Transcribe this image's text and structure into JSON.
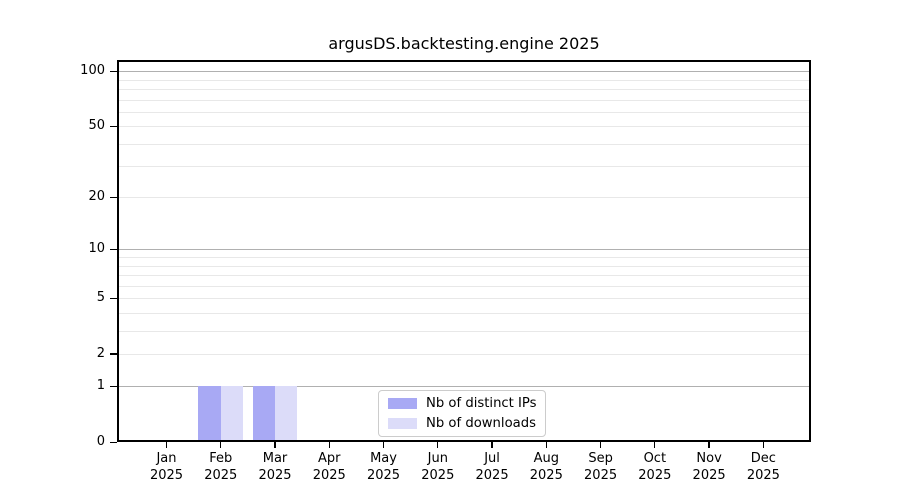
{
  "title": "argusDS.backtesting.engine 2025",
  "chart_data": {
    "type": "bar",
    "title": "argusDS.backtesting.engine 2025",
    "x_months": [
      "Jan",
      "Feb",
      "Mar",
      "Apr",
      "May",
      "Jun",
      "Jul",
      "Aug",
      "Sep",
      "Oct",
      "Nov",
      "Dec"
    ],
    "x_year": "2025",
    "categories": [
      "Jan 2025",
      "Feb 2025",
      "Mar 2025",
      "Apr 2025",
      "May 2025",
      "Jun 2025",
      "Jul 2025",
      "Aug 2025",
      "Sep 2025",
      "Oct 2025",
      "Nov 2025",
      "Dec 2025"
    ],
    "series": [
      {
        "name": "Nb of distinct IPs",
        "color": "#a8a9f4",
        "values": [
          0,
          1,
          1,
          0,
          0,
          0,
          0,
          0,
          0,
          0,
          0,
          0
        ]
      },
      {
        "name": "Nb of downloads",
        "color": "#dcdcf9",
        "values": [
          0,
          1,
          1,
          0,
          0,
          0,
          0,
          0,
          0,
          0,
          0,
          0
        ]
      }
    ],
    "y_scale": "log1p",
    "ylim": [
      0,
      115
    ],
    "y_tick_values": [
      0,
      1,
      2,
      5,
      10,
      20,
      50,
      100
    ],
    "y_tick_labels": [
      "0",
      "1",
      "2",
      "5",
      "10",
      "20",
      "50",
      "100"
    ],
    "y_major_gridlines": [
      1,
      10,
      100
    ],
    "y_minor_gridlines": [
      2,
      3,
      4,
      5,
      6,
      7,
      8,
      9,
      20,
      30,
      40,
      50,
      60,
      70,
      80,
      90
    ],
    "grid_major_color": "#b0b0b0",
    "grid_minor_color": "#e8e8e8",
    "legend": {
      "position": "lower center",
      "entries": [
        "Nb of distinct IPs",
        "Nb of downloads"
      ]
    }
  }
}
